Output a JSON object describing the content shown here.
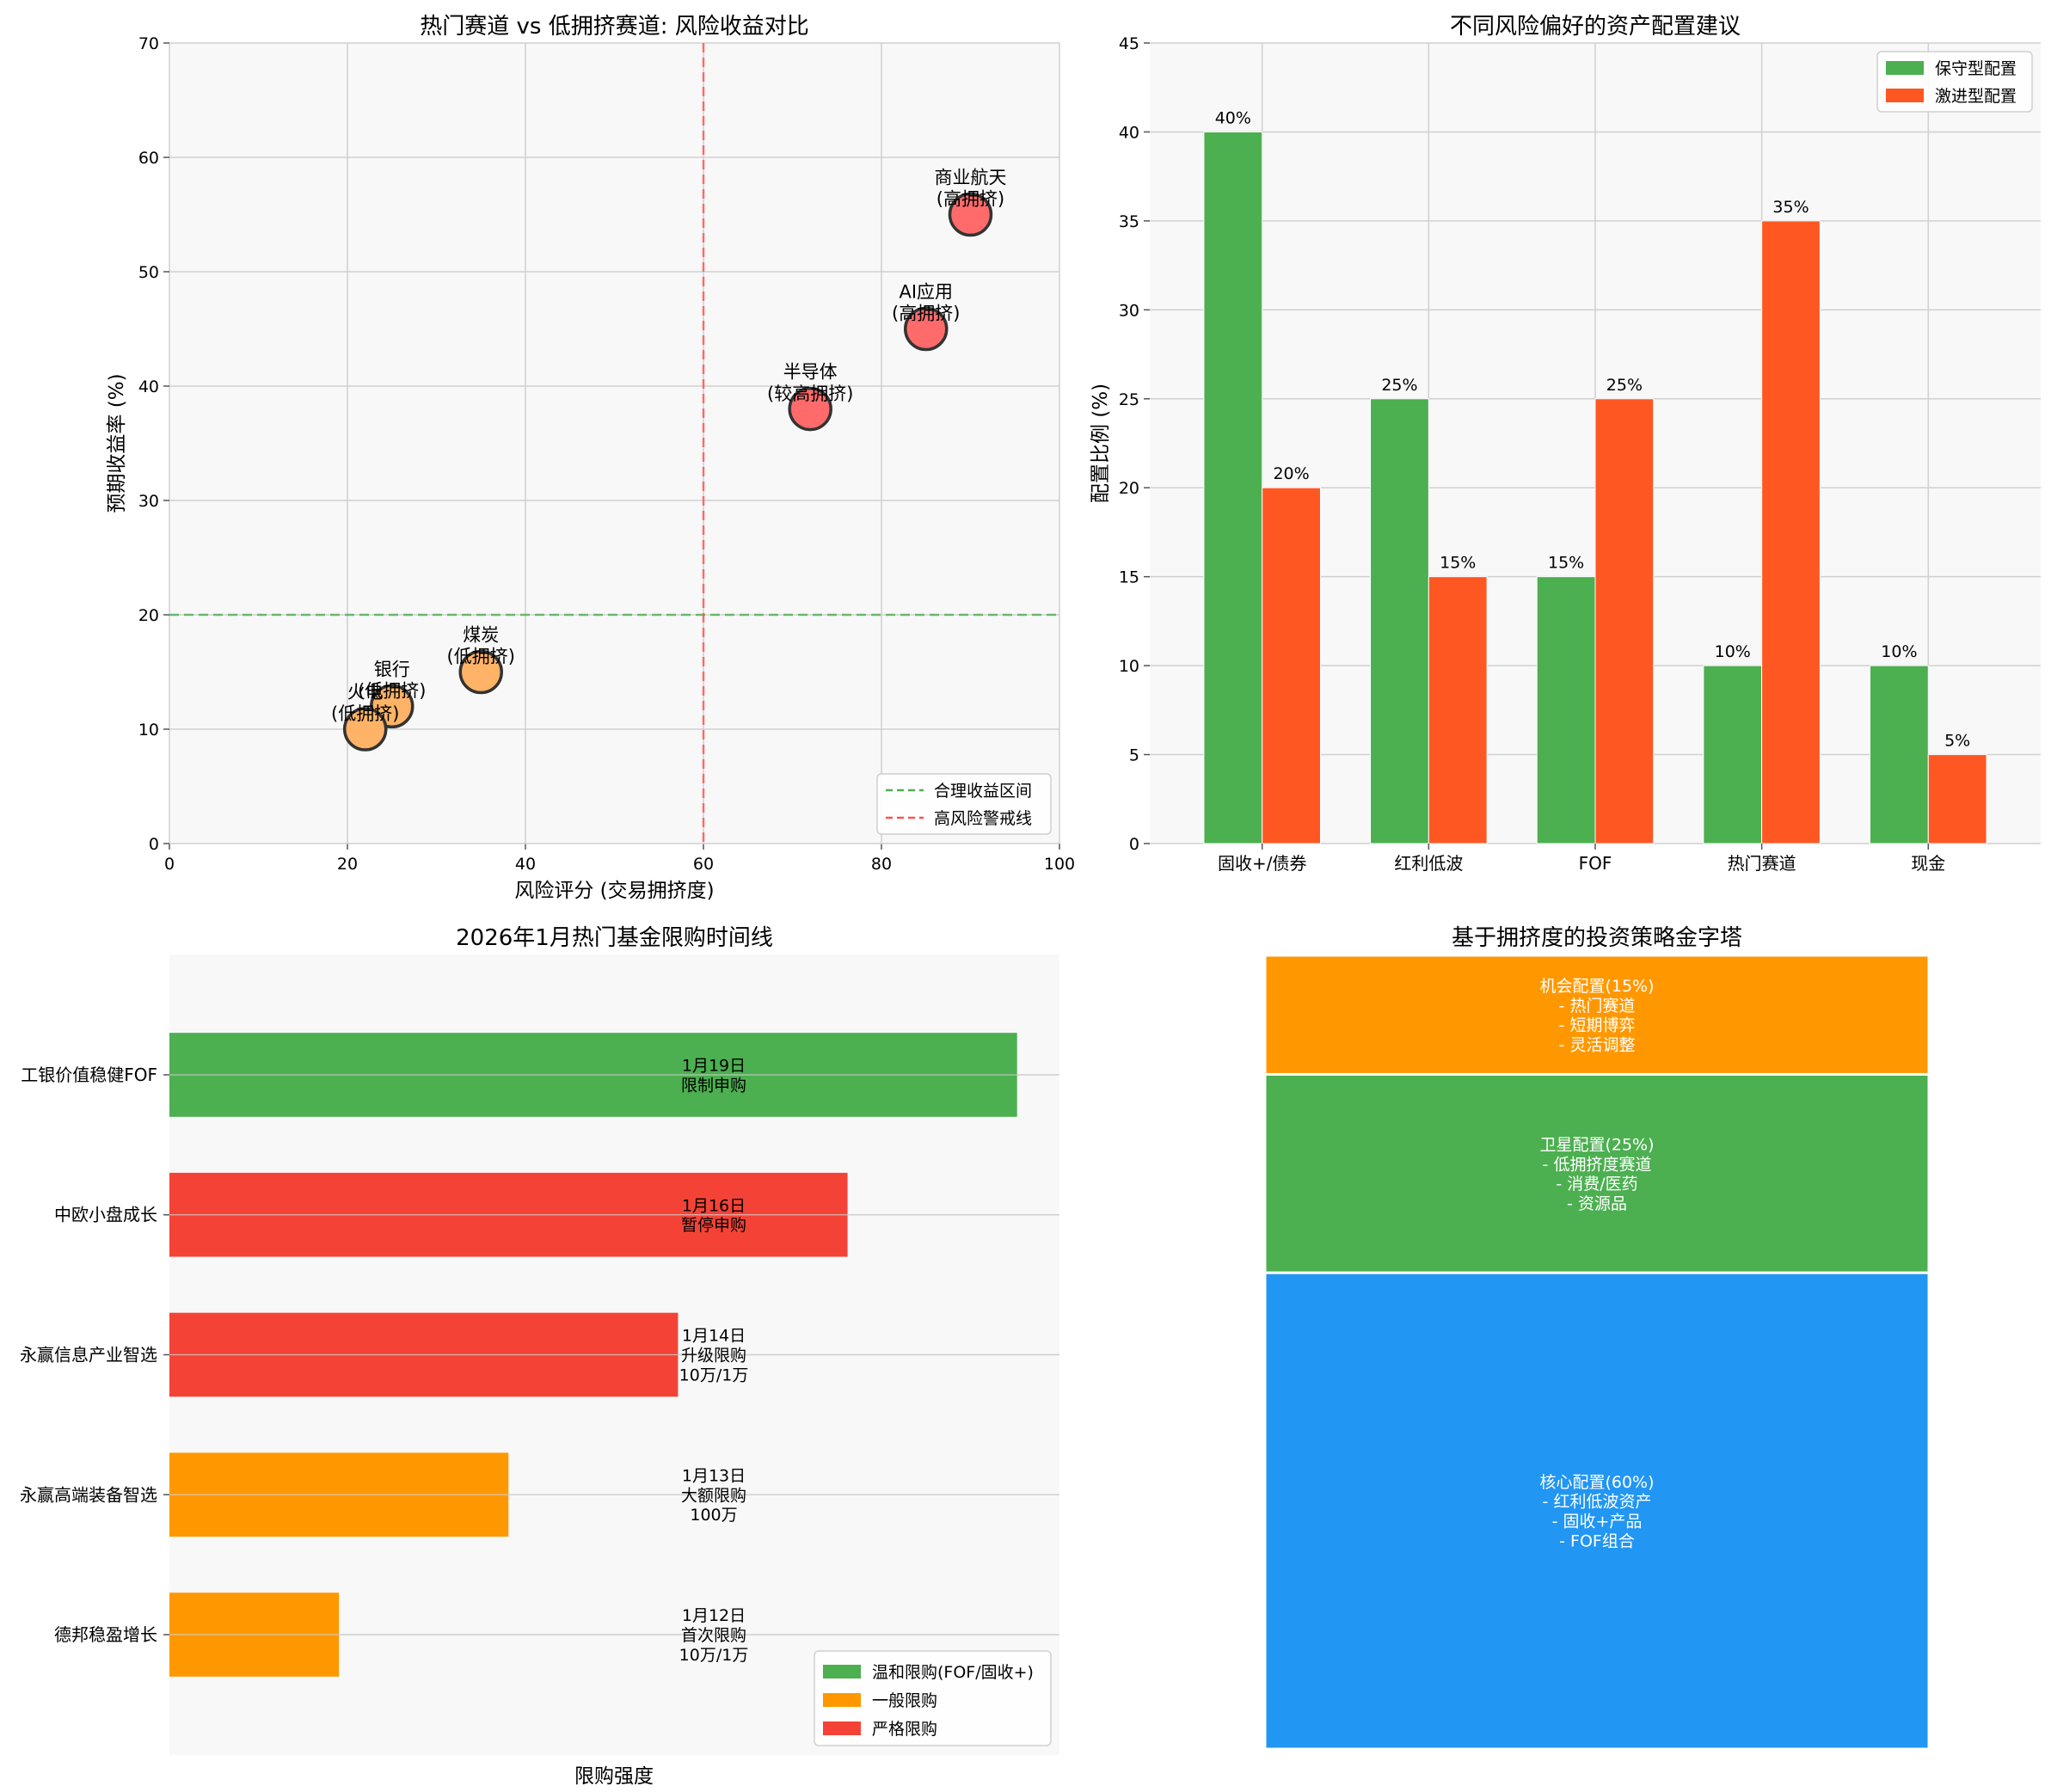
{
  "chart_data": [
    {
      "type": "scatter",
      "title": "热门赛道 vs 低拥挤赛道: 风险收益对比",
      "xlabel": "风险评分 (交易拥挤度)",
      "ylabel": "预期收益率 (%)",
      "xlim": [
        0,
        100
      ],
      "ylim": [
        0,
        70
      ],
      "xticks": [
        "0",
        "20",
        "40",
        "60",
        "80",
        "100"
      ],
      "yticks": [
        "0",
        "10",
        "20",
        "30",
        "40",
        "50",
        "60",
        "70"
      ],
      "grid": true,
      "legend_position": "bottom-right",
      "points": [
        {
          "label": "商业航天\n(高拥挤)",
          "x": 90,
          "y": 55,
          "group": "high",
          "color": "#ff6b6b"
        },
        {
          "label": "AI应用\n(高拥挤)",
          "x": 85,
          "y": 45,
          "group": "high",
          "color": "#ff6b6b"
        },
        {
          "label": "半导体\n(较高拥挤)",
          "x": 72,
          "y": 38,
          "group": "high",
          "color": "#ff6b6b"
        },
        {
          "label": "煤炭\n(低拥挤)",
          "x": 35,
          "y": 15,
          "group": "low",
          "color": "#ffb366"
        },
        {
          "label": "银行\n(低拥挤)",
          "x": 25,
          "y": 12,
          "group": "low",
          "color": "#ffb366"
        },
        {
          "label": "火电\n(低拥挤)",
          "x": 22,
          "y": 10,
          "group": "low",
          "color": "#ffb366"
        }
      ],
      "reference_lines": [
        {
          "orientation": "horizontal",
          "value": 20,
          "label": "合理收益区间",
          "color": "#4caf50"
        },
        {
          "orientation": "vertical",
          "value": 60,
          "label": "高风险警戒线",
          "color": "#ff5252"
        }
      ]
    },
    {
      "type": "bar",
      "title": "不同风险偏好的资产配置建议",
      "xlabel": "",
      "ylabel": "配置比例 (%)",
      "ylim": [
        0,
        45
      ],
      "yticks": [
        "0",
        "5",
        "10",
        "15",
        "20",
        "25",
        "30",
        "35",
        "40",
        "45"
      ],
      "grid": true,
      "legend_position": "top-right",
      "categories": [
        "固收+/债券",
        "红利低波",
        "FOF",
        "热门赛道",
        "现金"
      ],
      "series": [
        {
          "name": "保守型配置",
          "color": "#4caf50",
          "values": [
            40,
            25,
            15,
            10,
            10
          ],
          "labels": [
            "40%",
            "25%",
            "15%",
            "10%",
            "10%"
          ]
        },
        {
          "name": "激进型配置",
          "color": "#ff5722",
          "values": [
            20,
            15,
            25,
            35,
            5
          ],
          "labels": [
            "20%",
            "15%",
            "25%",
            "35%",
            "5%"
          ]
        }
      ]
    },
    {
      "type": "bar",
      "orientation": "horizontal",
      "title": "2026年1月热门基金限购时间线",
      "xlabel": "限购强度",
      "ylabel": "",
      "grid": true,
      "legend_position": "bottom-right",
      "xlim": [
        0,
        5.25
      ],
      "categories": [
        "德邦稳盈增长",
        "永赢高端装备智选",
        "永赢信息产业智选",
        "中欧小盘成长",
        "工银价值稳健FOF"
      ],
      "values": [
        1,
        2,
        3,
        4,
        5
      ],
      "bar_labels": [
        "1月12日\n首次限购\n10万/1万",
        "1月13日\n大额限购\n100万",
        "1月14日\n升级限购\n10万/1万",
        "1月16日\n暂停申购",
        "1月19日\n限制申购"
      ],
      "bar_levels": [
        "一般限购",
        "一般限购",
        "严格限购",
        "严格限购",
        "温和限购(FOF/固收+)"
      ],
      "legend": [
        {
          "name": "温和限购(FOF/固收+)",
          "color": "#4caf50"
        },
        {
          "name": "一般限购",
          "color": "#ff9800"
        },
        {
          "name": "严格限购",
          "color": "#f44336"
        }
      ]
    },
    {
      "type": "pyramid",
      "title": "基于拥挤度的投资策略金字塔",
      "tiers": [
        {
          "share": 15,
          "color": "#ff9800",
          "text": "机会配置(15%)\n- 热门赛道\n- 短期博弈\n- 灵活调整"
        },
        {
          "share": 25,
          "color": "#4caf50",
          "text": "卫星配置(25%)\n- 低拥挤度赛道\n- 消费/医药\n- 资源品"
        },
        {
          "share": 60,
          "color": "#2196f3",
          "text": "核心配置(60%)\n- 红利低波资产\n- 固收+产品\n- FOF组合"
        }
      ]
    }
  ]
}
